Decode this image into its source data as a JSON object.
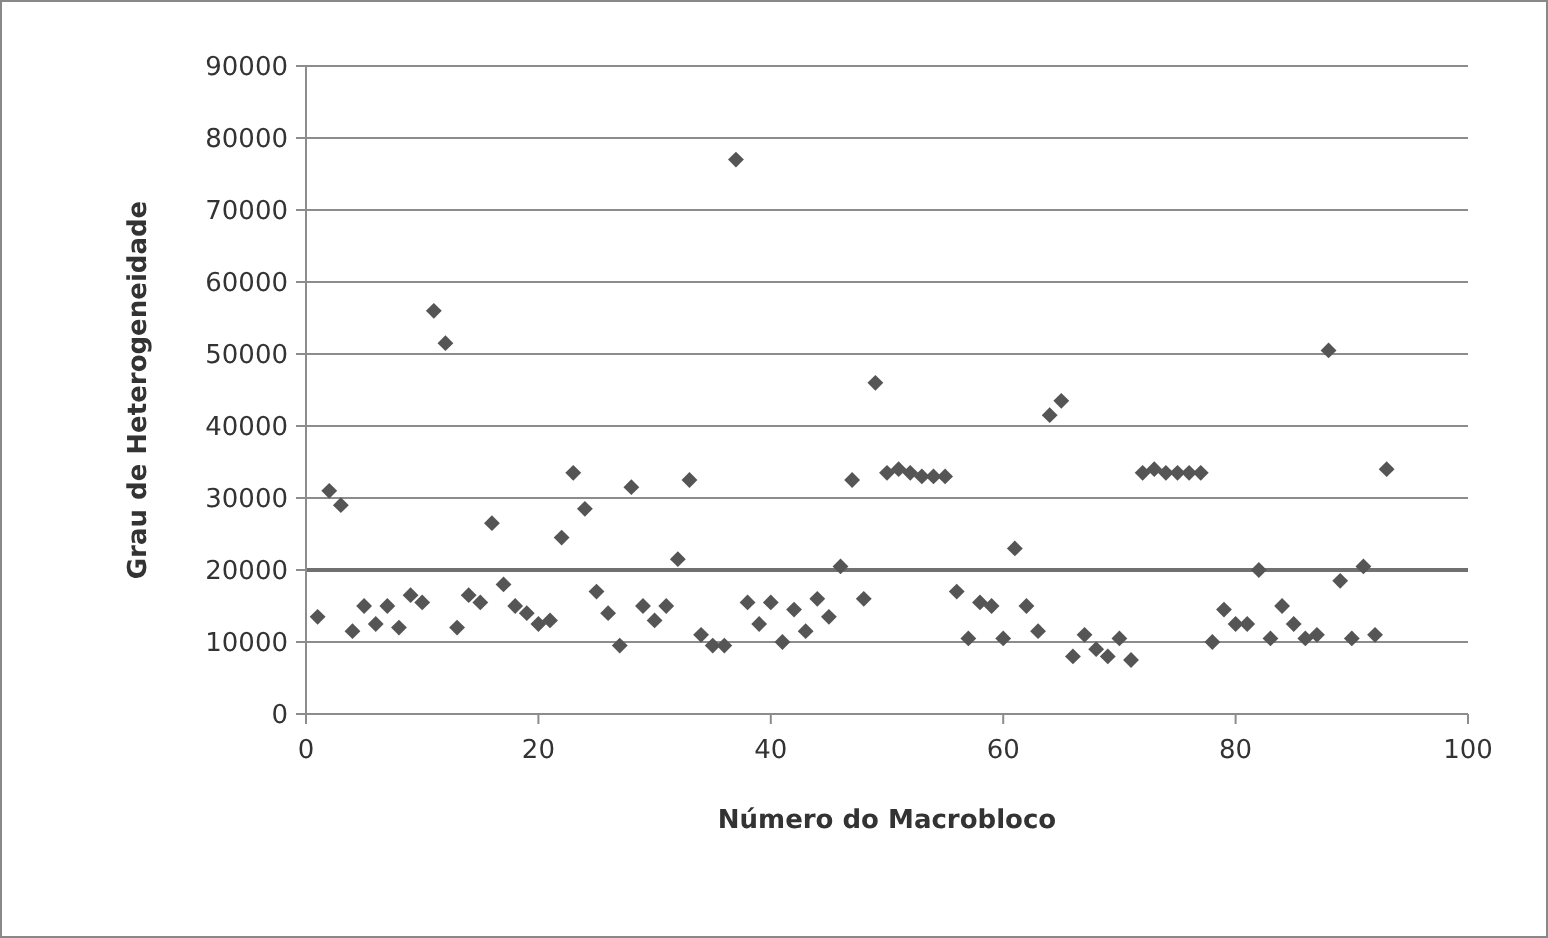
{
  "chart_data": {
    "type": "scatter",
    "xlabel": "Número do Macrobloco",
    "ylabel": "Grau de Heterogeneidade",
    "x": [
      1,
      2,
      3,
      4,
      5,
      6,
      7,
      8,
      9,
      10,
      11,
      12,
      13,
      14,
      15,
      16,
      17,
      18,
      19,
      20,
      21,
      22,
      23,
      24,
      25,
      26,
      27,
      28,
      29,
      30,
      31,
      32,
      33,
      34,
      35,
      36,
      37,
      38,
      39,
      40,
      41,
      42,
      43,
      44,
      45,
      46,
      47,
      48,
      49,
      50,
      51,
      52,
      53,
      54,
      55,
      56,
      57,
      58,
      59,
      60,
      61,
      62,
      63,
      64,
      65,
      66,
      67,
      68,
      69,
      70,
      71,
      72,
      73,
      74,
      75,
      76,
      77,
      78,
      79,
      80,
      81,
      82,
      83,
      84,
      85,
      86,
      87,
      88,
      89,
      90,
      91,
      92,
      93
    ],
    "series": [
      {
        "color": "#555555",
        "values": [
          13500,
          31000,
          29000,
          11500,
          15000,
          12500,
          15000,
          12000,
          16500,
          15500,
          56000,
          51500,
          12000,
          16500,
          15500,
          26500,
          18000,
          15000,
          14000,
          12500,
          13000,
          24500,
          33500,
          28500,
          17000,
          14000,
          9500,
          31500,
          15000,
          13000,
          15000,
          21500,
          32500,
          11000,
          9500,
          9500,
          77000,
          15500,
          12500,
          15500,
          10000,
          14500,
          11500,
          16000,
          13500,
          20500,
          32500,
          16000,
          46000,
          33500,
          34000,
          33500,
          33000,
          33000,
          33000,
          17000,
          10500,
          15500,
          15000,
          10500,
          23000,
          15000,
          11500,
          41500,
          43500,
          8000,
          11000,
          9000,
          8000,
          10500,
          7500,
          33500,
          34000,
          33500,
          33500,
          33500,
          33500,
          10000,
          14500,
          12500,
          12500,
          20000,
          10500,
          15000,
          12500,
          10500,
          11000,
          50500,
          18500,
          10500,
          20500,
          11000,
          34000
        ]
      }
    ],
    "xlim": [
      0,
      100
    ],
    "xticks": [
      0,
      20,
      40,
      60,
      80,
      100
    ],
    "ylim": [
      0,
      90000
    ],
    "yticks": [
      0,
      10000,
      20000,
      30000,
      40000,
      50000,
      60000,
      70000,
      80000,
      90000
    ],
    "grid": "y",
    "marker": "diamond",
    "ref_lines": [
      {
        "axis": "y",
        "value": 20000,
        "color": "#707070"
      }
    ]
  }
}
